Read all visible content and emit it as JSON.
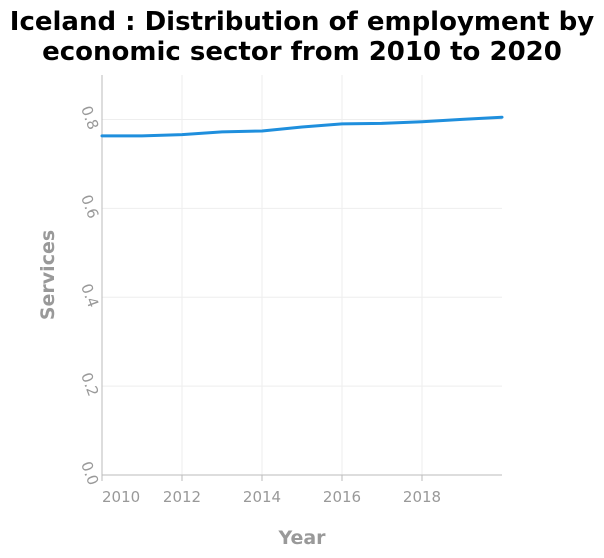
{
  "chart_data": {
    "type": "line",
    "title_lines": [
      "Iceland : Distribution of employment by",
      "economic sector from 2010 to 2020"
    ],
    "xlabel": "Year",
    "ylabel": "Services",
    "xlim": [
      2010,
      2020
    ],
    "ylim": [
      0.0,
      0.9
    ],
    "x_ticks": [
      2010,
      2012,
      2014,
      2016,
      2018
    ],
    "y_ticks": [
      "0.0",
      "0.2",
      "0.4",
      "0.6",
      "0.8"
    ],
    "grid": true,
    "series": [
      {
        "color": "#1f8fdd",
        "x": [
          2010,
          2011,
          2012,
          2013,
          2014,
          2015,
          2016,
          2017,
          2018,
          2019,
          2020
        ],
        "y": [
          0.763,
          0.763,
          0.766,
          0.772,
          0.774,
          0.783,
          0.79,
          0.791,
          0.795,
          0.8,
          0.805
        ]
      }
    ]
  }
}
